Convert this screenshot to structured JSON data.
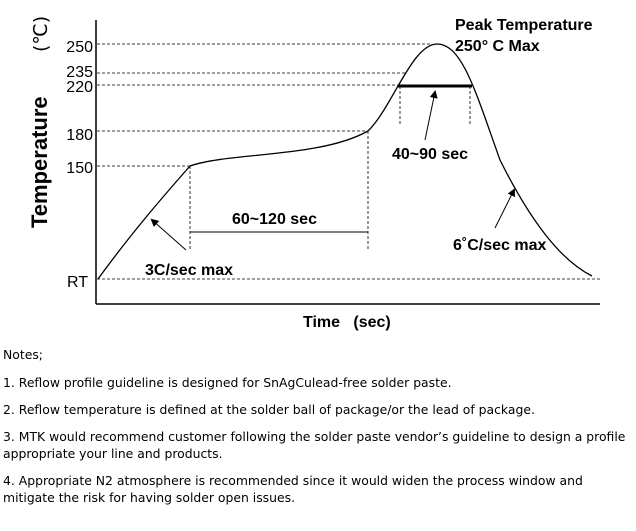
{
  "diagram": {
    "y_axis_label": "Temperature",
    "y_axis_unit": "(℃)",
    "x_axis_label": "Time   (sec)",
    "y_ticks": [
      "250",
      "235",
      "220",
      "180",
      "150",
      "RT"
    ],
    "annotations": {
      "peak_line1": "Peak Temperature",
      "peak_line2": "250° C Max",
      "time_above_liquidus": "40~90 sec",
      "soak_time": "60~120 sec",
      "ramp_up": "3C/sec max",
      "ramp_down": "6˚C/sec max"
    }
  },
  "chart_data": {
    "type": "line",
    "xlabel": "Time   (sec)",
    "ylabel": "Temperature",
    "y_ticks": [
      "RT",
      "150",
      "180",
      "220",
      "235",
      "250"
    ],
    "series": [
      {
        "values": [
          "RT",
          150,
          180,
          250,
          "RT"
        ]
      }
    ]
  },
  "notes": {
    "heading": "Notes;",
    "items": [
      "1. Reflow profile guideline is designed for SnAgCulead-free solder paste.",
      "2. Reflow temperature is defined at the solder ball of package/or the lead of package.",
      "3. MTK would recommend customer following the solder paste vendor’s guideline to design a profile appropriate your line and products.",
      "4. Appropriate N2 atmosphere is recommended since it would widen the process window and mitigate the risk for having solder open issues."
    ]
  }
}
